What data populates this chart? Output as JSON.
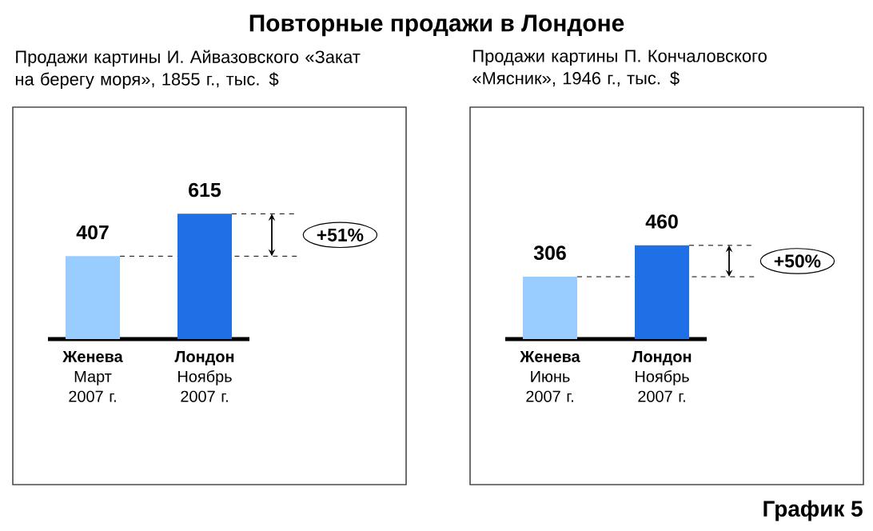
{
  "chart_data": [
    {
      "type": "bar",
      "title": "Повторные продажи в Лондоне",
      "subtitle": "Продажи картины И. Айвазовского «Закат на берегу моря», 1855 г., тыс. $",
      "categories": [
        "**Женева** Март 2007 г.",
        "**Лондон** Ноябрь 2007 г."
      ],
      "values": [
        407,
        615
      ],
      "colors": [
        "#99ccff",
        "#1f6fe6"
      ],
      "data_labels": true,
      "ref_lines": [
        {
          "axis": "y",
          "value": 407,
          "line_style": "dashed"
        },
        {
          "axis": "y",
          "value": 615,
          "line_style": "dashed"
        }
      ],
      "annotations": [
        "+51%"
      ]
    },
    {
      "type": "bar",
      "subtitle": "Продажи картины П. Кончаловского «Мясник», 1946 г., тыс. $",
      "categories": [
        "**Женева** Июнь 2007 г.",
        "**Лондон** Ноябрь 2007 г."
      ],
      "values": [
        306,
        460
      ],
      "colors": [
        "#99ccff",
        "#1f6fe6"
      ],
      "data_labels": true,
      "ref_lines": [
        {
          "axis": "y",
          "value": 306,
          "line_style": "dashed"
        },
        {
          "axis": "y",
          "value": 460,
          "line_style": "dashed"
        }
      ],
      "annotations": [
        "+50%",
        "График 5"
      ]
    }
  ]
}
